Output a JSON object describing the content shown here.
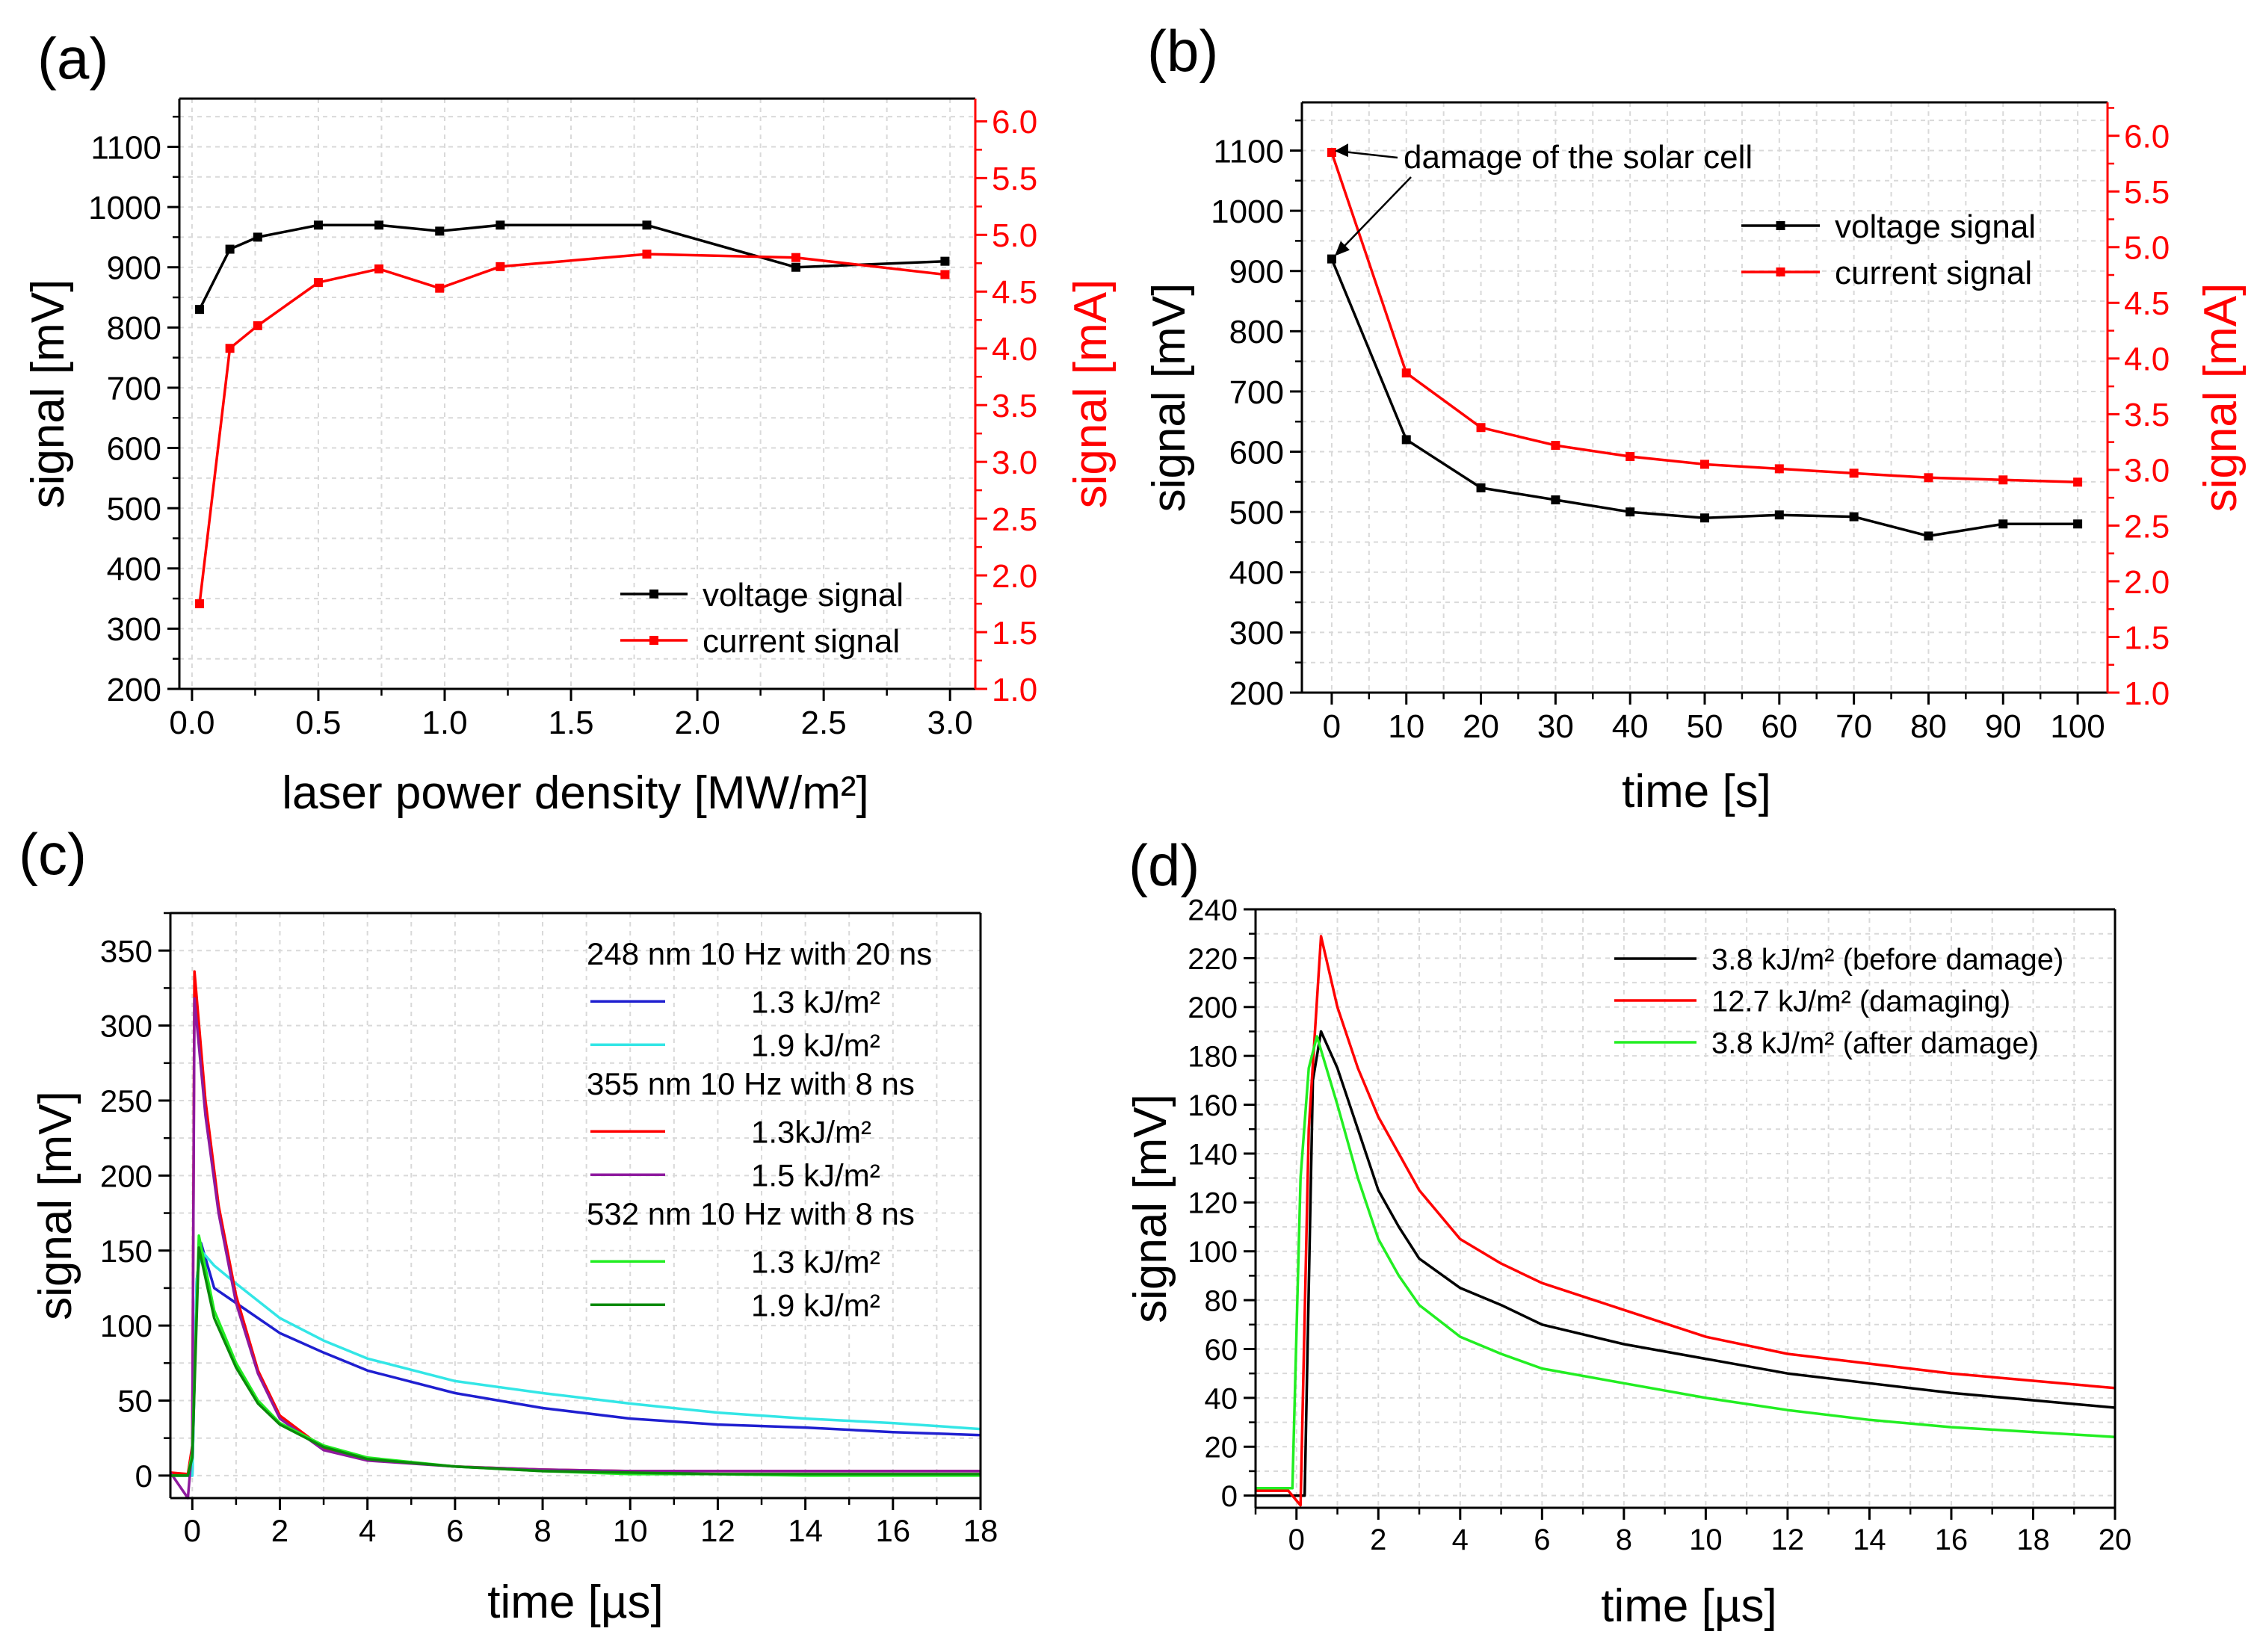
{
  "figure": {
    "panel_labels": [
      "(a)",
      "(b)",
      "(c)",
      "(d)"
    ]
  },
  "colors": {
    "black": "#000000",
    "red": "#ff0000",
    "blue": "#1f1fd0",
    "cyan": "#33e6e6",
    "purple": "#8e1a9e",
    "green": "#22ee22",
    "darkgreen": "#0a8a0a",
    "grid": "#d9d9d9"
  },
  "chart_data": [
    {
      "id": "a",
      "type": "line",
      "title": "",
      "xlabel": "laser power density [MW/m²]",
      "ylabel": "signal [mV]",
      "y2label": "signal [mA]",
      "xlim": [
        -0.05,
        3.1
      ],
      "ylim": [
        200,
        1180
      ],
      "y2lim": [
        1.0,
        6.2
      ],
      "xticks": [
        0.0,
        0.5,
        1.0,
        1.5,
        2.0,
        2.5,
        3.0
      ],
      "xtick_labels": [
        "0.0",
        "0.5",
        "1.0",
        "1.5",
        "2.0",
        "2.5",
        "3.0"
      ],
      "yticks": [
        200,
        300,
        400,
        500,
        600,
        700,
        800,
        900,
        1000,
        1100
      ],
      "ytick_labels": [
        "200",
        "300",
        "400",
        "500",
        "600",
        "700",
        "800",
        "900",
        "1000",
        "1100"
      ],
      "y2ticks": [
        1.0,
        1.5,
        2.0,
        2.5,
        3.0,
        3.5,
        4.0,
        4.5,
        5.0,
        5.5,
        6.0
      ],
      "y2tick_labels": [
        "1.0",
        "1.5",
        "2.0",
        "2.5",
        "3.0",
        "3.5",
        "4.0",
        "4.5",
        "5.0",
        "5.5",
        "6.0"
      ],
      "legend_position": "bottom-right",
      "series": [
        {
          "name": "voltage signal",
          "axis": "left",
          "color": "black",
          "markers": true,
          "x": [
            0.03,
            0.15,
            0.26,
            0.5,
            0.74,
            0.98,
            1.22,
            1.8,
            2.39,
            2.98
          ],
          "y": [
            830,
            930,
            950,
            970,
            970,
            960,
            970,
            970,
            900,
            910
          ]
        },
        {
          "name": "current signal",
          "axis": "right",
          "color": "red",
          "markers": true,
          "x": [
            0.03,
            0.15,
            0.26,
            0.5,
            0.74,
            0.98,
            1.22,
            1.8,
            2.39,
            2.98
          ],
          "y": [
            1.75,
            4.0,
            4.2,
            4.58,
            4.7,
            4.53,
            4.72,
            4.83,
            4.8,
            4.65
          ]
        }
      ]
    },
    {
      "id": "b",
      "type": "line",
      "title": "",
      "xlabel": "time [s]",
      "ylabel": "signal [mV]",
      "y2label": "signal [mA]",
      "xlim": [
        -4,
        104
      ],
      "ylim": [
        200,
        1180
      ],
      "y2lim": [
        1.0,
        6.3
      ],
      "xticks": [
        0,
        10,
        20,
        30,
        40,
        50,
        60,
        70,
        80,
        90,
        100
      ],
      "xtick_labels": [
        "0",
        "10",
        "20",
        "30",
        "40",
        "50",
        "60",
        "70",
        "80",
        "90",
        "100"
      ],
      "yticks": [
        200,
        300,
        400,
        500,
        600,
        700,
        800,
        900,
        1000,
        1100
      ],
      "ytick_labels": [
        "200",
        "300",
        "400",
        "500",
        "600",
        "700",
        "800",
        "900",
        "1000",
        "1100"
      ],
      "y2ticks": [
        1.0,
        1.5,
        2.0,
        2.5,
        3.0,
        3.5,
        4.0,
        4.5,
        5.0,
        5.5,
        6.0
      ],
      "y2tick_labels": [
        "1.0",
        "1.5",
        "2.0",
        "2.5",
        "3.0",
        "3.5",
        "4.0",
        "4.5",
        "5.0",
        "5.5",
        "6.0"
      ],
      "legend_position": "top-right",
      "annotation": "damage of the solar cell",
      "series": [
        {
          "name": "voltage signal",
          "axis": "left",
          "color": "black",
          "markers": true,
          "x": [
            0,
            10,
            20,
            30,
            40,
            50,
            60,
            70,
            80,
            90,
            100
          ],
          "y": [
            920,
            620,
            540,
            520,
            500,
            490,
            495,
            492,
            460,
            480,
            480
          ]
        },
        {
          "name": "current signal",
          "axis": "right",
          "color": "red",
          "markers": true,
          "x": [
            0,
            10,
            20,
            30,
            40,
            50,
            60,
            70,
            80,
            90,
            100
          ],
          "y": [
            5.85,
            3.87,
            3.38,
            3.22,
            3.12,
            3.05,
            3.01,
            2.97,
            2.93,
            2.91,
            2.89
          ]
        }
      ]
    },
    {
      "id": "c",
      "type": "line",
      "title": "",
      "xlabel": "time [µs]",
      "ylabel": "signal [mV]",
      "xlim": [
        -0.5,
        18
      ],
      "ylim": [
        -15,
        375
      ],
      "xticks": [
        0,
        2,
        4,
        6,
        8,
        10,
        12,
        14,
        16,
        18
      ],
      "xtick_labels": [
        "0",
        "2",
        "4",
        "6",
        "8",
        "10",
        "12",
        "14",
        "16",
        "18"
      ],
      "yticks": [
        0,
        50,
        100,
        150,
        200,
        250,
        300,
        350
      ],
      "ytick_labels": [
        "0",
        "50",
        "100",
        "150",
        "200",
        "250",
        "300",
        "350"
      ],
      "legend_position": "top-right",
      "legend_groups": [
        "248 nm 10 Hz with 20 ns",
        "355 nm 10 Hz with 8 ns",
        "532 nm 10 Hz with 8 ns"
      ],
      "series": [
        {
          "name": "1.3 kJ/m²",
          "group": "248 nm 10 Hz with 20 ns",
          "color": "blue",
          "x": [
            -0.5,
            0,
            0.1,
            0.2,
            0.5,
            1,
            2,
            3,
            4,
            6,
            8,
            10,
            12,
            14,
            16,
            18
          ],
          "y": [
            0,
            0,
            130,
            155,
            125,
            115,
            95,
            82,
            70,
            55,
            45,
            38,
            34,
            32,
            29,
            27
          ]
        },
        {
          "name": "1.9 kJ/m²",
          "group": "248 nm 10 Hz with 20 ns",
          "color": "cyan",
          "x": [
            -0.5,
            0,
            0.1,
            0.2,
            0.5,
            1,
            2,
            3,
            4,
            6,
            8,
            10,
            12,
            14,
            16,
            18
          ],
          "y": [
            0,
            0,
            130,
            150,
            140,
            128,
            105,
            90,
            78,
            63,
            55,
            48,
            42,
            38,
            35,
            31
          ]
        },
        {
          "name": "1.3kJ/m²",
          "group": "355 nm 10 Hz with 8 ns",
          "color": "red",
          "x": [
            -0.5,
            -0.1,
            0,
            0.05,
            0.3,
            0.6,
            1,
            1.5,
            2,
            3,
            4,
            6,
            8,
            10,
            12,
            14,
            16,
            18
          ],
          "y": [
            2,
            1,
            20,
            336,
            250,
            180,
            120,
            70,
            40,
            18,
            11,
            6,
            4,
            3,
            3,
            3,
            3,
            3
          ]
        },
        {
          "name": "1.5 kJ/m²",
          "group": "355 nm 10 Hz with 8 ns",
          "color": "purple",
          "x": [
            -0.5,
            -0.1,
            0,
            0.05,
            0.3,
            0.6,
            1,
            1.5,
            2,
            3,
            4,
            6,
            8,
            10,
            12,
            14,
            16,
            18
          ],
          "y": [
            2,
            -15,
            20,
            318,
            240,
            175,
            115,
            68,
            38,
            17,
            10,
            6,
            4,
            3,
            3,
            3,
            3,
            3
          ]
        },
        {
          "name": "1.3 kJ/m²",
          "group": "532 nm 10 Hz with 8 ns",
          "color": "green",
          "x": [
            -0.5,
            -0.1,
            0,
            0.15,
            0.5,
            1,
            1.5,
            2,
            3,
            4,
            6,
            8,
            10,
            12,
            14,
            16,
            18
          ],
          "y": [
            0,
            0,
            15,
            160,
            110,
            75,
            50,
            35,
            20,
            12,
            6,
            3,
            1,
            1,
            0,
            0,
            0
          ]
        },
        {
          "name": "1.9 kJ/m²",
          "group": "532 nm 10 Hz with 8 ns",
          "color": "darkgreen",
          "x": [
            -0.5,
            -0.1,
            0,
            0.15,
            0.5,
            1,
            1.5,
            2,
            3,
            4,
            6,
            8,
            10,
            12,
            14,
            16,
            18
          ],
          "y": [
            0,
            0,
            12,
            152,
            105,
            72,
            48,
            34,
            19,
            11,
            6,
            3,
            2,
            1,
            1,
            1,
            1
          ]
        }
      ]
    },
    {
      "id": "d",
      "type": "line",
      "title": "",
      "xlabel": "time [µs]",
      "ylabel": "signal [mV]",
      "xlim": [
        -1,
        20
      ],
      "ylim": [
        -5,
        240
      ],
      "xticks": [
        0,
        2,
        4,
        6,
        8,
        10,
        12,
        14,
        16,
        18,
        20
      ],
      "xtick_labels": [
        "0",
        "2",
        "4",
        "6",
        "8",
        "10",
        "12",
        "14",
        "16",
        "18",
        "20"
      ],
      "yticks": [
        0,
        20,
        40,
        60,
        80,
        100,
        120,
        140,
        160,
        180,
        200,
        220,
        240
      ],
      "ytick_labels": [
        "0",
        "20",
        "40",
        "60",
        "80",
        "100",
        "120",
        "140",
        "160",
        "180",
        "200",
        "220",
        "240"
      ],
      "legend_position": "top-right",
      "series": [
        {
          "name": "3.8 kJ/m² (before damage)",
          "color": "black",
          "x": [
            -1,
            0,
            0.2,
            0.4,
            0.6,
            1,
            1.5,
            2,
            2.5,
            3,
            4,
            5,
            6,
            8,
            10,
            12,
            14,
            16,
            18,
            20
          ],
          "y": [
            0,
            0,
            0,
            170,
            190,
            175,
            150,
            125,
            110,
            97,
            85,
            78,
            70,
            62,
            56,
            50,
            46,
            42,
            39,
            36
          ]
        },
        {
          "name": "12.7 kJ/m² (damaging)",
          "color": "red",
          "x": [
            -1,
            -0.2,
            0.1,
            0.3,
            0.6,
            1,
            1.5,
            2,
            2.5,
            3,
            4,
            5,
            6,
            8,
            10,
            12,
            14,
            16,
            18,
            20
          ],
          "y": [
            2,
            2,
            -4,
            150,
            229,
            200,
            175,
            155,
            140,
            125,
            105,
            95,
            87,
            76,
            65,
            58,
            54,
            50,
            47,
            44
          ]
        },
        {
          "name": "3.8 kJ/m² (after damage)",
          "color": "green",
          "x": [
            -1,
            -0.1,
            0.1,
            0.3,
            0.5,
            1,
            1.5,
            2,
            2.5,
            3,
            4,
            5,
            6,
            8,
            10,
            12,
            14,
            16,
            18,
            20
          ],
          "y": [
            3,
            3,
            130,
            175,
            188,
            160,
            130,
            105,
            90,
            78,
            65,
            58,
            52,
            46,
            40,
            35,
            31,
            28,
            26,
            24
          ]
        }
      ]
    }
  ]
}
